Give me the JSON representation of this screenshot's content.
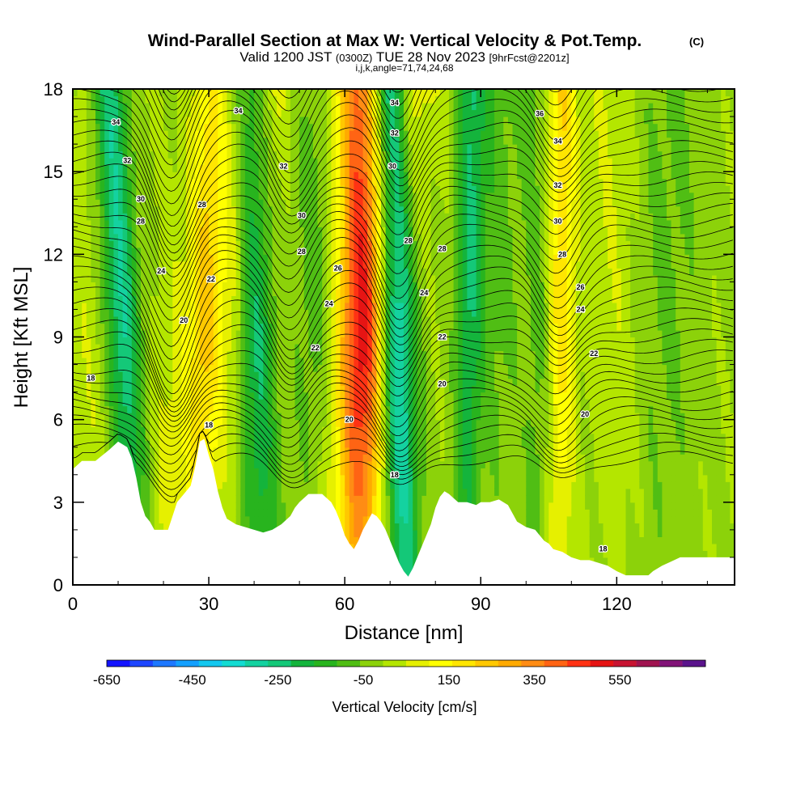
{
  "chart_data": {
    "type": "heatmap",
    "title": "Wind-Parallel Section at Max W: Vertical Velocity & Pot.Temp.",
    "copyright": "(C)",
    "subtitle_parts": [
      "Valid 1200 JST",
      "(0300Z)",
      "TUE 28 Nov 2023",
      "[9hrFcst@2201z]"
    ],
    "subtitle2": "i,j,k,angle=71,74,24,68",
    "xlabel": "Distance [nm]",
    "ylabel": "Height [Kft MSL]",
    "xlim": [
      0,
      146
    ],
    "ylim": [
      0,
      18
    ],
    "x_ticks": [
      "0",
      "30",
      "60",
      "90",
      "120"
    ],
    "y_ticks": [
      "0",
      "3",
      "6",
      "9",
      "12",
      "15",
      "18"
    ],
    "colorbar": {
      "label": "Vertical Velocity [cm/s]",
      "range": [
        -650,
        750
      ],
      "tick_labels": [
        "-650",
        "-450",
        "-250",
        "-50",
        "150",
        "350",
        "550"
      ],
      "colors": [
        "#1414ff",
        "#1e46ff",
        "#1e78ff",
        "#14a0ff",
        "#14c8f0",
        "#14dcd2",
        "#14d2a0",
        "#14c878",
        "#14b43c",
        "#28b41e",
        "#50be14",
        "#8cd20a",
        "#b4e600",
        "#e6f000",
        "#ffff00",
        "#ffe600",
        "#ffc800",
        "#ffaa00",
        "#ff8c14",
        "#ff6414",
        "#ff3214",
        "#e61414",
        "#c81432",
        "#a01450",
        "#821478",
        "#5a148c"
      ]
    },
    "terrain_kft": [
      [
        0,
        4.2
      ],
      [
        2,
        4.5
      ],
      [
        5,
        4.5
      ],
      [
        8,
        4.9
      ],
      [
        10,
        5.2
      ],
      [
        12,
        5.0
      ],
      [
        13,
        4.6
      ],
      [
        14,
        3.9
      ],
      [
        15,
        3.0
      ],
      [
        16,
        2.5
      ],
      [
        17,
        2.3
      ],
      [
        18,
        2.0
      ],
      [
        21,
        2.0
      ],
      [
        22,
        2.5
      ],
      [
        23,
        3.0
      ],
      [
        24,
        3.2
      ],
      [
        25,
        3.4
      ],
      [
        26,
        3.6
      ],
      [
        27,
        4.3
      ],
      [
        28,
        5.2
      ],
      [
        29,
        5.3
      ],
      [
        30,
        4.7
      ],
      [
        31,
        4.2
      ],
      [
        32,
        3.4
      ],
      [
        33,
        2.8
      ],
      [
        34,
        2.4
      ],
      [
        36,
        2.2
      ],
      [
        38,
        2.1
      ],
      [
        40,
        2.0
      ],
      [
        42,
        1.9
      ],
      [
        44,
        2.0
      ],
      [
        46,
        2.2
      ],
      [
        48,
        2.5
      ],
      [
        49,
        2.8
      ],
      [
        50,
        3.0
      ],
      [
        52,
        3.3
      ],
      [
        55,
        3.3
      ],
      [
        57,
        3.0
      ],
      [
        58,
        2.7
      ],
      [
        59,
        2.3
      ],
      [
        60,
        1.8
      ],
      [
        61,
        1.5
      ],
      [
        62,
        1.3
      ],
      [
        63,
        1.6
      ],
      [
        64,
        2.0
      ],
      [
        65,
        2.3
      ],
      [
        66,
        2.6
      ],
      [
        67,
        2.5
      ],
      [
        68,
        2.3
      ],
      [
        69,
        2.0
      ],
      [
        70,
        1.6
      ],
      [
        71,
        1.2
      ],
      [
        72,
        0.8
      ],
      [
        73,
        0.5
      ],
      [
        74,
        0.3
      ],
      [
        75,
        0.6
      ],
      [
        76,
        1.0
      ],
      [
        77,
        1.4
      ],
      [
        78,
        1.8
      ],
      [
        79,
        2.2
      ],
      [
        80,
        2.8
      ],
      [
        81,
        3.2
      ],
      [
        82,
        3.4
      ],
      [
        83,
        3.3
      ],
      [
        85,
        3.0
      ],
      [
        87,
        3.0
      ],
      [
        89,
        2.9
      ],
      [
        90,
        3.0
      ],
      [
        92,
        3.0
      ],
      [
        94,
        3.1
      ],
      [
        96,
        2.9
      ],
      [
        97,
        2.6
      ],
      [
        98,
        2.3
      ],
      [
        100,
        2.1
      ],
      [
        102,
        2.0
      ],
      [
        103,
        1.8
      ],
      [
        104,
        1.6
      ],
      [
        105,
        1.5
      ],
      [
        106,
        1.3
      ],
      [
        108,
        1.2
      ],
      [
        110,
        1.0
      ],
      [
        112,
        0.9
      ],
      [
        114,
        0.9
      ],
      [
        116,
        0.8
      ],
      [
        118,
        0.7
      ],
      [
        120,
        0.5
      ],
      [
        122,
        0.35
      ],
      [
        126,
        0.35
      ],
      [
        127,
        0.35
      ],
      [
        128,
        0.5
      ],
      [
        130,
        0.7
      ],
      [
        132,
        0.85
      ],
      [
        134,
        1.0
      ],
      [
        146,
        1.0
      ]
    ],
    "updrafts": [
      {
        "x_bottom": 21,
        "x_top": 39,
        "w": 10,
        "strength": 130
      },
      {
        "x_bottom": 64,
        "x_top": 63,
        "w": 5,
        "strength": 400
      },
      {
        "x_bottom": 28,
        "x_top": 30,
        "w": 3,
        "strength": 120
      },
      {
        "x_bottom": 107,
        "x_top": 108,
        "w": 3,
        "strength": 200
      },
      {
        "x_bottom": 58,
        "x_top": 73,
        "w": 7,
        "strength": 150
      },
      {
        "x_bottom": 99,
        "x_top": 103,
        "w": 5,
        "strength": 90
      },
      {
        "x_bottom": 122,
        "x_top": 118,
        "w": 6,
        "strength": 60
      },
      {
        "x_bottom": 5,
        "x_top": 6,
        "w": 7,
        "strength": 60
      }
    ],
    "downdrafts": [
      {
        "x_bottom": 14,
        "x_top": 8,
        "w": 4,
        "strength": -300
      },
      {
        "x_bottom": 42,
        "x_top": 39,
        "w": 4,
        "strength": -250
      },
      {
        "x_bottom": 73,
        "x_top": 70,
        "w": 4,
        "strength": -400
      },
      {
        "x_bottom": 87,
        "x_top": 88,
        "w": 3,
        "strength": -200
      },
      {
        "x_bottom": 103,
        "x_top": 102,
        "w": 4,
        "strength": -150
      },
      {
        "x_bottom": 97,
        "x_top": 93,
        "w": 5,
        "strength": -80
      },
      {
        "x_bottom": 54,
        "x_top": 53,
        "w": 5,
        "strength": -80
      },
      {
        "x_bottom": 128,
        "x_top": 132,
        "w": 8,
        "strength": -60
      }
    ],
    "contour_labels": [
      {
        "text": "34",
        "x": 9.5,
        "y": 16.8
      },
      {
        "text": "34",
        "x": 36.5,
        "y": 17.2
      },
      {
        "text": "34",
        "x": 71,
        "y": 17.5
      },
      {
        "text": "36",
        "x": 103,
        "y": 17.1
      },
      {
        "text": "34",
        "x": 107,
        "y": 16.1
      },
      {
        "text": "32",
        "x": 12,
        "y": 15.4
      },
      {
        "text": "32",
        "x": 46.5,
        "y": 15.2
      },
      {
        "text": "32",
        "x": 71,
        "y": 16.4
      },
      {
        "text": "32",
        "x": 107,
        "y": 14.5
      },
      {
        "text": "30",
        "x": 15,
        "y": 14.0
      },
      {
        "text": "30",
        "x": 70.5,
        "y": 15.2
      },
      {
        "text": "30",
        "x": 50.5,
        "y": 13.4
      },
      {
        "text": "30",
        "x": 107,
        "y": 13.2
      },
      {
        "text": "28",
        "x": 15,
        "y": 13.2
      },
      {
        "text": "28",
        "x": 28.5,
        "y": 13.8
      },
      {
        "text": "28",
        "x": 50.5,
        "y": 12.1
      },
      {
        "text": "28",
        "x": 74,
        "y": 12.5
      },
      {
        "text": "28",
        "x": 81.5,
        "y": 12.2
      },
      {
        "text": "28",
        "x": 108,
        "y": 12.0
      },
      {
        "text": "26",
        "x": 58.5,
        "y": 11.5
      },
      {
        "text": "26",
        "x": 112,
        "y": 10.8
      },
      {
        "text": "24",
        "x": 19.5,
        "y": 11.4
      },
      {
        "text": "24",
        "x": 56.5,
        "y": 10.2
      },
      {
        "text": "24",
        "x": 77.5,
        "y": 10.6
      },
      {
        "text": "24",
        "x": 112,
        "y": 10.0
      },
      {
        "text": "22",
        "x": 30.5,
        "y": 11.1
      },
      {
        "text": "22",
        "x": 53.5,
        "y": 8.6
      },
      {
        "text": "22",
        "x": 81.5,
        "y": 9.0
      },
      {
        "text": "22",
        "x": 115,
        "y": 8.4
      },
      {
        "text": "20",
        "x": 24.5,
        "y": 9.6
      },
      {
        "text": "20",
        "x": 61,
        "y": 6.0
      },
      {
        "text": "20",
        "x": 81.5,
        "y": 7.3
      },
      {
        "text": "20",
        "x": 113,
        "y": 6.2
      },
      {
        "text": "18",
        "x": 4,
        "y": 7.5
      },
      {
        "text": "18",
        "x": 30,
        "y": 5.8
      },
      {
        "text": "18",
        "x": 71,
        "y": 4.0
      },
      {
        "text": "18",
        "x": 117,
        "y": 1.3
      }
    ]
  }
}
